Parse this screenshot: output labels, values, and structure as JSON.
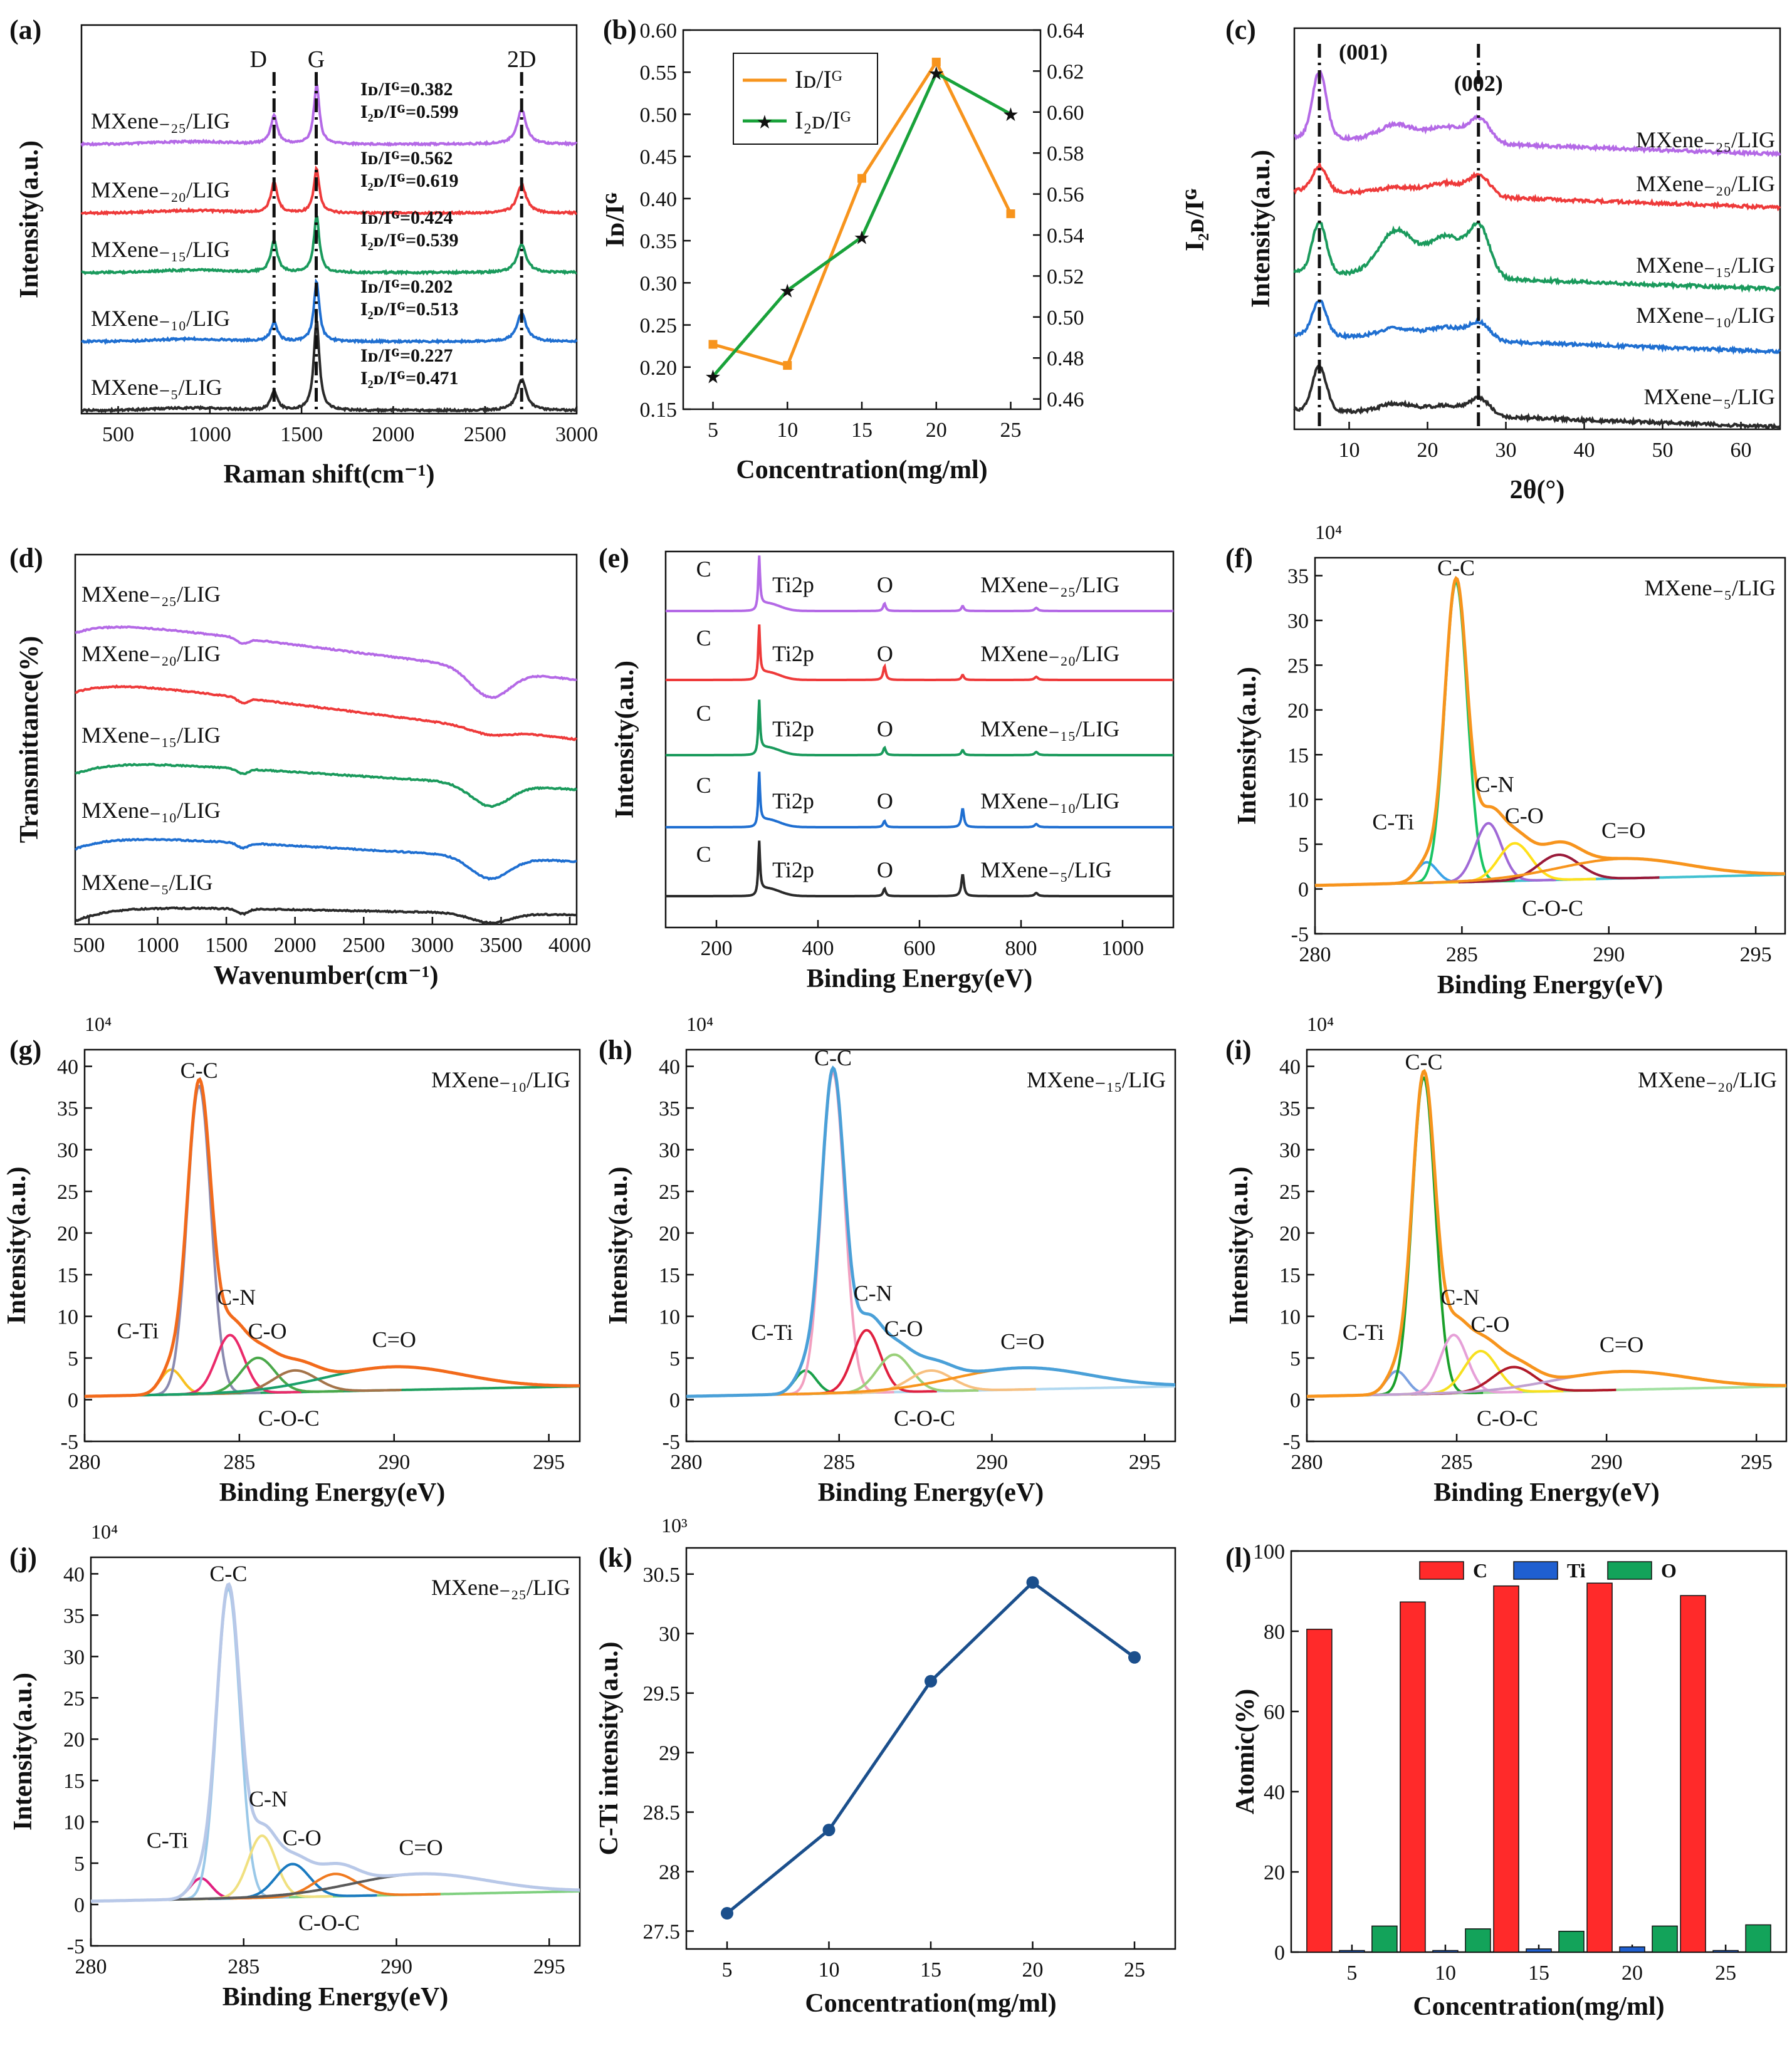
{
  "colors": {
    "purple": "#b469e6",
    "red": "#ee3a3a",
    "green": "#1a9a5c",
    "blue": "#1f6fd1",
    "black": "#2a2a2a",
    "orange": "#f7941d",
    "green2": "#19a23a",
    "navy": "#1b4f8c",
    "barC": "#ff2a2a",
    "barTi": "#1f5fd0",
    "barO": "#13a35a"
  },
  "sample_names": [
    "MXene₋₂₅/LIG",
    "MXene₋₂₀/LIG",
    "MXene₋₁₅/LIG",
    "MXene₋₁₀/LIG",
    "MXene₋₅/LIG"
  ],
  "chart_data": [
    {
      "panel": "(a)",
      "type": "line",
      "title": "",
      "xlabel": "Raman shift(cm⁻¹)",
      "ylabel": "Intensity(a.u.)",
      "xlim": [
        300,
        3000
      ],
      "xticks": [
        500,
        1000,
        1500,
        2000,
        2500,
        3000
      ],
      "peaks": {
        "D": 1350,
        "G": 1580,
        "2D": 2700
      },
      "series": [
        {
          "name": "MXene₋₂₅/LIG",
          "ratio_d": "Iᴅ/Iᴳ=0.382",
          "ratio_2d": "I₂ᴅ/Iᴳ=0.599"
        },
        {
          "name": "MXene₋₂₀/LIG",
          "ratio_d": "Iᴅ/Iᴳ=0.562",
          "ratio_2d": "I₂ᴅ/Iᴳ=0.619"
        },
        {
          "name": "MXene₋₁₅/LIG",
          "ratio_d": "Iᴅ/Iᴳ=0.424",
          "ratio_2d": "I₂ᴅ/Iᴳ=0.539"
        },
        {
          "name": "MXene₋₁₀/LIG",
          "ratio_d": "Iᴅ/Iᴳ=0.202",
          "ratio_2d": "I₂ᴅ/Iᴳ=0.513"
        },
        {
          "name": "MXene₋₅/LIG",
          "ratio_d": "Iᴅ/Iᴳ=0.227",
          "ratio_2d": "I₂ᴅ/Iᴳ=0.471"
        }
      ]
    },
    {
      "panel": "(b)",
      "type": "line",
      "xlabel": "Concentration(mg/ml)",
      "ylabel": "Iᴅ/Iᴳ",
      "ylabel_right": "I₂ᴅ/Iᴳ",
      "x": [
        5,
        10,
        15,
        20,
        25
      ],
      "xlim": [
        3,
        27
      ],
      "series": [
        {
          "name": "Iᴅ/Iᴳ",
          "axis": "left",
          "values": [
            0.227,
            0.202,
            0.424,
            0.562,
            0.382
          ]
        },
        {
          "name": "I₂ᴅ/Iᴳ",
          "axis": "right",
          "values": [
            0.471,
            0.513,
            0.539,
            0.619,
            0.599
          ]
        }
      ],
      "ylim": [
        0.15,
        0.6
      ],
      "yticks": [
        0.15,
        0.2,
        0.25,
        0.3,
        0.35,
        0.4,
        0.45,
        0.5,
        0.55,
        0.6
      ],
      "ylim_right": [
        0.455,
        0.64
      ],
      "yticks_right": [
        0.46,
        0.48,
        0.5,
        0.52,
        0.54,
        0.56,
        0.58,
        0.6,
        0.62,
        0.64
      ]
    },
    {
      "panel": "(c)",
      "type": "line",
      "xlabel": "2θ(°)",
      "ylabel": "Intensity(a.u.)",
      "xlim": [
        3,
        65
      ],
      "xticks": [
        10,
        20,
        30,
        40,
        50,
        60
      ],
      "peak_labels": [
        {
          "text": "(001)",
          "x": 6.2
        },
        {
          "text": "(002)",
          "x": 26.5
        }
      ]
    },
    {
      "panel": "(d)",
      "type": "line",
      "xlabel": "Wavenumber(cm⁻¹)",
      "ylabel": "Transmittance(%)",
      "xlim": [
        400,
        4050
      ],
      "xticks": [
        500,
        1000,
        1500,
        2000,
        2500,
        3000,
        3500,
        4000
      ]
    },
    {
      "panel": "(e)",
      "type": "line",
      "xlabel": "Binding Energy(eV)",
      "ylabel": "Intensity(a.u.)",
      "xlim": [
        100,
        1100
      ],
      "xticks": [
        200,
        400,
        600,
        800,
        1000
      ],
      "peak_labels": [
        "C",
        "Ti2p",
        "O"
      ]
    },
    {
      "panel": "(f)",
      "type": "line",
      "sample": "MXene₋₅/LIG",
      "xlabel": "Binding Energy(eV)",
      "ylabel": "Intensity(a.u.)",
      "scale": "10⁴",
      "xlim": [
        280,
        296
      ],
      "xticks": [
        280,
        285,
        290,
        295
      ],
      "ylim": [
        -5,
        37
      ],
      "yticks": [
        -5,
        0,
        5,
        10,
        15,
        20,
        25,
        30,
        35
      ],
      "peaks": {
        "C-Ti": 283.8,
        "C-C": 284.8,
        "C-N": 285.9,
        "C-O": 286.8,
        "C-O-C": 288.3,
        "C=O": 290.5
      },
      "heights": {
        "C-Ti": 2.3,
        "C-C": 33.5,
        "C-N": 6.5,
        "C-O": 4.2,
        "C-O-C": 2.8,
        "C=O": 2.2
      }
    },
    {
      "panel": "(g)",
      "type": "line",
      "sample": "MXene₋₁₀/LIG",
      "xlabel": "Binding Energy(eV)",
      "ylabel": "Intensity(a.u.)",
      "scale": "10⁴",
      "xlim": [
        280,
        296
      ],
      "xticks": [
        280,
        285,
        290,
        295
      ],
      "ylim": [
        -5,
        42
      ],
      "yticks": [
        -5,
        0,
        5,
        10,
        15,
        20,
        25,
        30,
        35,
        40
      ],
      "peaks": {
        "C-Ti": 282.8,
        "C-C": 283.7,
        "C-N": 284.7,
        "C-O": 285.6,
        "C-O-C": 286.8,
        "C=O": 290.0
      },
      "heights": {
        "C-Ti": 3.0,
        "C-C": 37.0,
        "C-N": 7.0,
        "C-O": 4.2,
        "C-O-C": 2.6,
        "C=O": 2.8
      }
    },
    {
      "panel": "(h)",
      "type": "line",
      "sample": "MXene₋₁₅/LIG",
      "xlabel": "Binding Energy(eV)",
      "ylabel": "Intensity(a.u.)",
      "scale": "10⁴",
      "xlim": [
        280,
        296
      ],
      "xticks": [
        280,
        285,
        290,
        295
      ],
      "ylim": [
        -5,
        42
      ],
      "yticks": [
        -5,
        0,
        5,
        10,
        15,
        20,
        25,
        30,
        35,
        40
      ],
      "peaks": {
        "C-Ti": 283.9,
        "C-C": 284.8,
        "C-N": 285.9,
        "C-O": 286.8,
        "C-O-C": 288.0,
        "C=O": 291.0
      },
      "heights": {
        "C-Ti": 2.8,
        "C-C": 38.5,
        "C-N": 7.5,
        "C-O": 4.5,
        "C-O-C": 2.5,
        "C=O": 2.6
      }
    },
    {
      "panel": "(i)",
      "type": "line",
      "sample": "MXene₋₂₀/LIG",
      "xlabel": "Binding Energy(eV)",
      "ylabel": "Intensity(a.u.)",
      "scale": "10⁴",
      "xlim": [
        280,
        296
      ],
      "xticks": [
        280,
        285,
        290,
        295
      ],
      "ylim": [
        -5,
        42
      ],
      "yticks": [
        -5,
        0,
        5,
        10,
        15,
        20,
        25,
        30,
        35,
        40
      ],
      "peaks": {
        "C-Ti": 283.0,
        "C-C": 283.9,
        "C-N": 284.9,
        "C-O": 285.8,
        "C-O-C": 286.9,
        "C=O": 290.5
      },
      "heights": {
        "C-Ti": 2.8,
        "C-C": 38.0,
        "C-N": 7.0,
        "C-O": 5.0,
        "C-O-C": 3.0,
        "C=O": 2.2
      }
    },
    {
      "panel": "(j)",
      "type": "line",
      "sample": "MXene₋₂₅/LIG",
      "xlabel": "Binding Energy(eV)",
      "ylabel": "Intensity(a.u.)",
      "scale": "10⁴",
      "xlim": [
        280,
        296
      ],
      "xticks": [
        280,
        285,
        290,
        295
      ],
      "ylim": [
        -5,
        42
      ],
      "yticks": [
        -5,
        0,
        5,
        10,
        15,
        20,
        25,
        30,
        35,
        40
      ],
      "peaks": {
        "C-Ti": 283.6,
        "C-C": 284.5,
        "C-N": 285.6,
        "C-O": 286.6,
        "C-O-C": 288.0,
        "C=O": 290.8
      },
      "heights": {
        "C-Ti": 2.5,
        "C-C": 37.5,
        "C-N": 7.5,
        "C-O": 4.0,
        "C-O-C": 2.7,
        "C=O": 2.5
      }
    },
    {
      "panel": "(k)",
      "type": "line",
      "xlabel": "Concentration(mg/ml)",
      "ylabel": "C-Ti  intensity(a.u.)",
      "scale": "10³",
      "x": [
        5,
        10,
        15,
        20,
        25
      ],
      "values": [
        27.65,
        28.35,
        29.6,
        30.43,
        29.8
      ],
      "xlim": [
        3,
        27
      ],
      "ylim": [
        27.35,
        30.72
      ],
      "yticks": [
        27.5,
        28,
        28.5,
        29,
        29.5,
        30,
        30.5
      ],
      "ytick_labels": [
        "27.5",
        "28",
        "28.5",
        "29",
        "29.5",
        "30",
        "30.5"
      ]
    },
    {
      "panel": "(l)",
      "type": "bar",
      "xlabel": "Concentration(mg/ml)",
      "ylabel": "Atomic(%)",
      "categories": [
        "5",
        "10",
        "15",
        "20",
        "25"
      ],
      "series": [
        {
          "name": "C",
          "values": [
            80.5,
            87.3,
            91.3,
            92.0,
            88.9
          ]
        },
        {
          "name": "Ti",
          "values": [
            0.4,
            0.4,
            0.8,
            1.3,
            0.4
          ]
        },
        {
          "name": "O",
          "values": [
            6.5,
            5.8,
            5.2,
            6.5,
            6.8
          ]
        }
      ],
      "ylim": [
        0,
        100
      ],
      "yticks": [
        0,
        20,
        40,
        60,
        80,
        100
      ],
      "legend": "top"
    }
  ]
}
